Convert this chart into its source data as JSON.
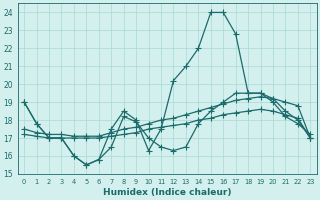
{
  "xlabel": "Humidex (Indice chaleur)",
  "x": [
    0,
    1,
    2,
    3,
    4,
    5,
    6,
    7,
    8,
    9,
    10,
    11,
    12,
    13,
    14,
    15,
    16,
    17,
    18,
    19,
    20,
    21,
    22,
    23
  ],
  "curve_peak": [
    19.0,
    17.8,
    17.0,
    17.0,
    16.0,
    15.5,
    15.8,
    17.5,
    18.5,
    18.0,
    16.3,
    17.5,
    20.2,
    21.0,
    22.0,
    24.0,
    24.0,
    22.8,
    19.5,
    19.5,
    19.0,
    18.2,
    17.8,
    17.2
  ],
  "curve_mid": [
    19.0,
    17.8,
    17.0,
    17.0,
    16.0,
    15.5,
    15.8,
    16.5,
    18.2,
    17.9,
    17.0,
    16.5,
    16.3,
    16.5,
    17.8,
    18.5,
    19.0,
    19.5,
    19.5,
    19.5,
    19.2,
    18.5,
    18.0,
    17.0
  ],
  "curve_trend1": [
    17.5,
    17.3,
    17.2,
    17.2,
    17.1,
    17.1,
    17.1,
    17.3,
    17.5,
    17.6,
    17.8,
    18.0,
    18.1,
    18.3,
    18.5,
    18.7,
    18.9,
    19.1,
    19.2,
    19.3,
    19.2,
    19.0,
    18.8,
    17.0
  ],
  "curve_trend2": [
    17.2,
    17.1,
    17.0,
    17.0,
    17.0,
    17.0,
    17.0,
    17.1,
    17.2,
    17.3,
    17.5,
    17.6,
    17.7,
    17.8,
    18.0,
    18.1,
    18.3,
    18.4,
    18.5,
    18.6,
    18.5,
    18.3,
    18.1,
    17.0
  ],
  "color": "#1a6b6b",
  "bg_color": "#d4f0ee",
  "grid_color": "#a8d8d4",
  "ylim": [
    15,
    24.5
  ],
  "yticks": [
    15,
    16,
    17,
    18,
    19,
    20,
    21,
    22,
    23,
    24
  ],
  "markersize": 2.0,
  "linewidth": 0.9
}
